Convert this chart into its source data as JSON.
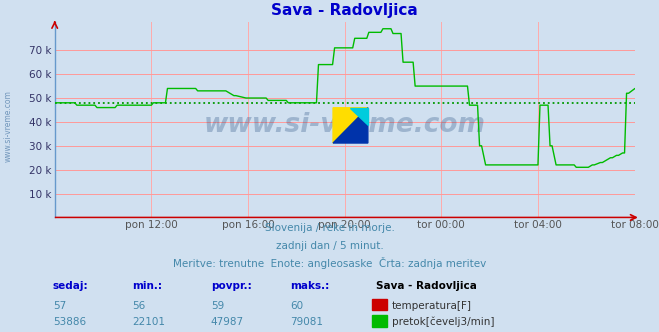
{
  "title": "Sava - Radovljica",
  "title_color": "#0000cc",
  "bg_color": "#d0e0f0",
  "plot_bg_color": "#d0e0f0",
  "grid_color_h": "#ff9999",
  "grid_color_v": "#ffaaaa",
  "text_color": "#4488aa",
  "ylabel_ticks": [
    "",
    "10 k",
    "20 k",
    "30 k",
    "40 k",
    "50 k",
    "60 k",
    "70 k"
  ],
  "ytick_vals": [
    0,
    10000,
    20000,
    30000,
    40000,
    50000,
    60000,
    70000
  ],
  "ylim": [
    0,
    82000
  ],
  "xtick_labels": [
    "pon 12:00",
    "pon 16:00",
    "pon 20:00",
    "tor 00:00",
    "tor 04:00",
    "tor 08:00"
  ],
  "flow_color": "#00bb00",
  "temp_color": "#cc0000",
  "avg_line_color": "#009900",
  "avg_value": 47987,
  "watermark": "www.si-vreme.com",
  "sub_text1": "Slovenija / reke in morje.",
  "sub_text2": "zadnji dan / 5 minut.",
  "sub_text3": "Meritve: trenutne  Enote: angleosaske  Črta: zadnja meritev",
  "legend_title": "Sava - Radovljica",
  "legend_items": [
    {
      "label": "temperatura[F]",
      "color": "#cc0000"
    },
    {
      "label": "pretok[čevelj3/min]",
      "color": "#00bb00"
    }
  ],
  "table_headers": [
    "sedaj:",
    "min.:",
    "povpr.:",
    "maks.:"
  ],
  "table_temp": [
    57,
    56,
    59,
    60
  ],
  "table_flow": [
    53886,
    22101,
    47987,
    79081
  ]
}
